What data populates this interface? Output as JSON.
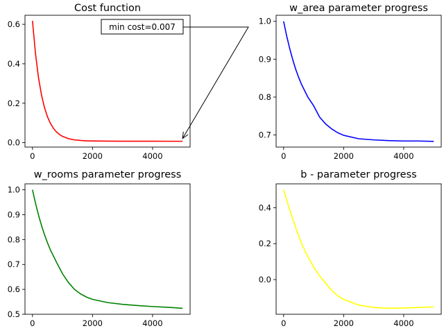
{
  "chart_data": [
    {
      "id": "cost",
      "type": "line",
      "title": "Cost function",
      "xlabel": "",
      "ylabel": "",
      "xlim": [
        -250,
        5250
      ],
      "ylim": [
        -0.0225,
        0.646
      ],
      "xticks": [
        0,
        2000,
        4000
      ],
      "xtick_labels": [
        "0",
        "2000",
        "4000"
      ],
      "yticks": [
        0.0,
        0.2,
        0.4,
        0.6
      ],
      "ytick_labels": [
        "0.0",
        "0.2",
        "0.4",
        "0.6"
      ],
      "grid": false,
      "series": [
        {
          "color": "#ff0000",
          "x": [
            0,
            100,
            200,
            300,
            400,
            500,
            600,
            700,
            800,
            900,
            1000,
            1200,
            1400,
            1600,
            1800,
            2000,
            2500,
            3000,
            3500,
            4000,
            4500,
            5000
          ],
          "y": [
            0.618,
            0.452,
            0.33,
            0.242,
            0.178,
            0.131,
            0.097,
            0.072,
            0.054,
            0.041,
            0.032,
            0.02,
            0.014,
            0.011,
            0.009,
            0.0085,
            0.0076,
            0.0073,
            0.0072,
            0.0071,
            0.007,
            0.007
          ]
        }
      ],
      "annotation": {
        "text": "min cost=0.007",
        "target": [
          5000,
          0.007
        ]
      }
    },
    {
      "id": "w_area",
      "type": "line",
      "title": "w_area parameter progress",
      "xlabel": "",
      "ylabel": "",
      "xlim": [
        -250,
        5250
      ],
      "ylim": [
        0.668,
        1.016
      ],
      "xticks": [
        0,
        2000,
        4000
      ],
      "xtick_labels": [
        "0",
        "2000",
        "4000"
      ],
      "yticks": [
        0.7,
        0.8,
        0.9,
        1.0
      ],
      "ytick_labels": [
        "0.7",
        "0.8",
        "0.9",
        "1.0"
      ],
      "grid": false,
      "series": [
        {
          "color": "#0000ff",
          "x": [
            0,
            100,
            200,
            300,
            400,
            500,
            600,
            800,
            1000,
            1200,
            1400,
            1600,
            1800,
            2000,
            2500,
            3000,
            3500,
            4000,
            4500,
            5000
          ],
          "y": [
            1.0,
            0.962,
            0.929,
            0.9,
            0.874,
            0.852,
            0.833,
            0.801,
            0.777,
            0.747,
            0.729,
            0.716,
            0.706,
            0.699,
            0.69,
            0.687,
            0.685,
            0.684,
            0.684,
            0.683
          ]
        }
      ]
    },
    {
      "id": "w_rooms",
      "type": "line",
      "title": "w_rooms parameter progress",
      "xlabel": "",
      "ylabel": "",
      "xlim": [
        -250,
        5250
      ],
      "ylim": [
        0.5,
        1.024
      ],
      "xticks": [
        0,
        2000,
        4000
      ],
      "xtick_labels": [
        "0",
        "2000",
        "4000"
      ],
      "yticks": [
        0.5,
        0.6,
        0.7,
        0.8,
        0.9,
        1.0
      ],
      "ytick_labels": [
        "0.5",
        "0.6",
        "0.7",
        "0.8",
        "0.9",
        "1.0"
      ],
      "grid": false,
      "series": [
        {
          "color": "#008000",
          "x": [
            0,
            100,
            200,
            300,
            400,
            500,
            600,
            800,
            1000,
            1200,
            1400,
            1600,
            1800,
            2000,
            2500,
            3000,
            3500,
            4000,
            4500,
            5000
          ],
          "y": [
            1.0,
            0.946,
            0.899,
            0.857,
            0.82,
            0.787,
            0.758,
            0.709,
            0.663,
            0.627,
            0.6,
            0.582,
            0.569,
            0.56,
            0.547,
            0.54,
            0.535,
            0.531,
            0.528,
            0.524
          ]
        }
      ]
    },
    {
      "id": "b",
      "type": "line",
      "title": "b - parameter progress",
      "xlabel": "",
      "ylabel": "",
      "xlim": [
        -250,
        5250
      ],
      "ylim": [
        -0.193,
        0.533
      ],
      "xticks": [
        0,
        2000,
        4000
      ],
      "xtick_labels": [
        "0",
        "2000",
        "4000"
      ],
      "yticks": [
        0.0,
        0.2,
        0.4
      ],
      "ytick_labels": [
        "0.0",
        "0.2",
        "0.4"
      ],
      "grid": false,
      "series": [
        {
          "color": "#ffff00",
          "x": [
            0,
            200,
            400,
            600,
            800,
            1000,
            1200,
            1400,
            1600,
            1800,
            2000,
            2500,
            3000,
            3500,
            4000,
            4500,
            5000
          ],
          "y": [
            0.5,
            0.39,
            0.29,
            0.2,
            0.13,
            0.07,
            0.02,
            -0.02,
            -0.06,
            -0.09,
            -0.11,
            -0.142,
            -0.155,
            -0.16,
            -0.158,
            -0.155,
            -0.152
          ]
        }
      ]
    }
  ]
}
